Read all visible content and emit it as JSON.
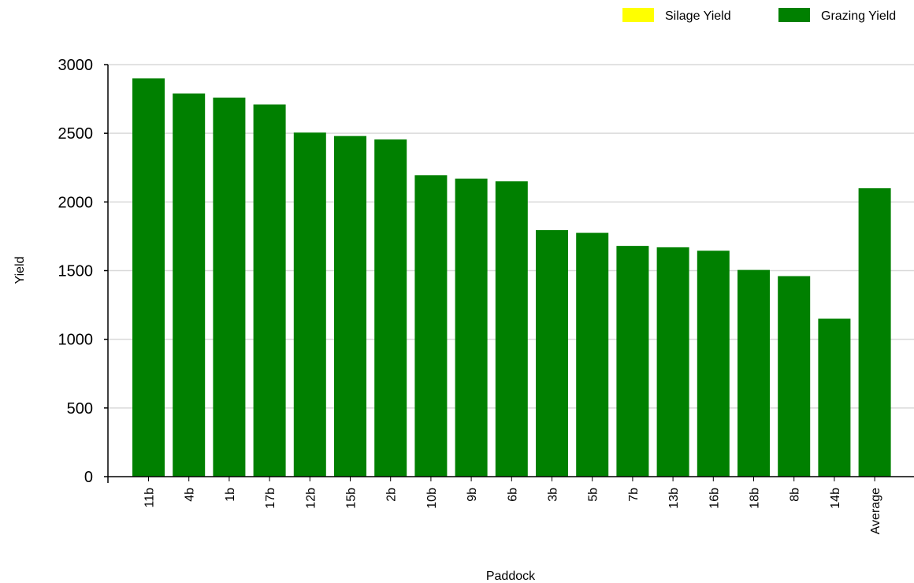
{
  "chart_data": {
    "type": "bar",
    "title": "",
    "xlabel": "Paddock",
    "ylabel": "Yield",
    "ylim": [
      0,
      3000
    ],
    "yticks": [
      0,
      500,
      1000,
      1500,
      2000,
      2500,
      3000
    ],
    "grid": true,
    "legend_position": "top-right",
    "stacked": true,
    "categories": [
      "11b",
      "4b",
      "1b",
      "17b",
      "12b",
      "15b",
      "2b",
      "10b",
      "9b",
      "6b",
      "3b",
      "5b",
      "7b",
      "13b",
      "16b",
      "18b",
      "8b",
      "14b",
      "Average"
    ],
    "series": [
      {
        "name": "Silage Yield",
        "color": "#ffff00",
        "values": [
          0,
          0,
          0,
          0,
          0,
          0,
          0,
          0,
          0,
          0,
          0,
          0,
          0,
          0,
          0,
          0,
          0,
          0,
          0
        ]
      },
      {
        "name": "Grazing Yield",
        "color": "#008000",
        "values": [
          2900,
          2790,
          2760,
          2710,
          2505,
          2480,
          2455,
          2195,
          2170,
          2150,
          1795,
          1775,
          1680,
          1670,
          1645,
          1505,
          1460,
          1150,
          2100
        ]
      }
    ]
  }
}
